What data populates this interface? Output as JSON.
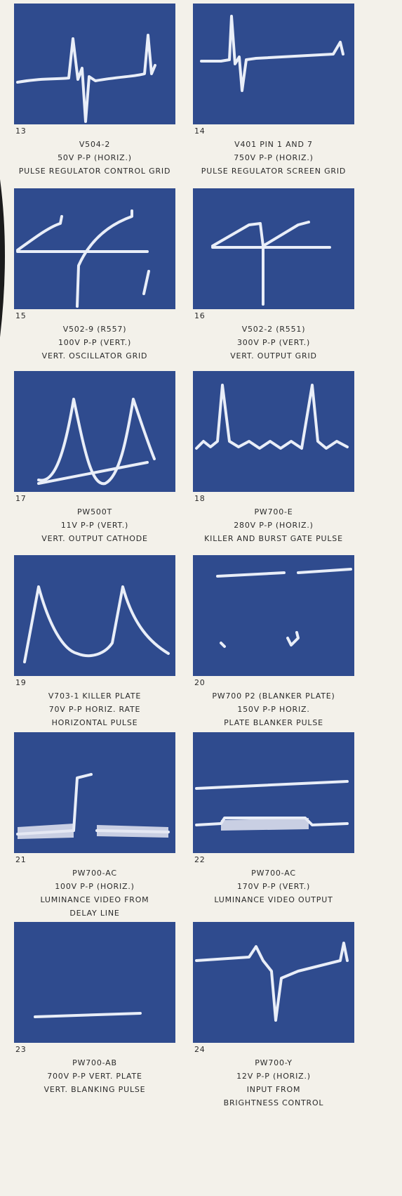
{
  "panels": [
    {
      "number": "13",
      "lines": [
        "V504-2",
        "50V P-P (HORIZ.)",
        "PULSE REGULATOR CONTROL GRID"
      ]
    },
    {
      "number": "14",
      "lines": [
        "V401 PIN 1 AND 7",
        "750V P-P (HORIZ.)",
        "PULSE REGULATOR SCREEN GRID"
      ]
    },
    {
      "number": "15",
      "lines": [
        "V502-9 (R557)",
        "100V P-P (VERT.)",
        "VERT. OSCILLATOR GRID"
      ]
    },
    {
      "number": "16",
      "lines": [
        "V502-2 (R551)",
        "300V P-P (VERT.)",
        "VERT. OUTPUT GRID"
      ]
    },
    {
      "number": "17",
      "lines": [
        "PW500T",
        "11V P-P (VERT.)",
        "VERT. OUTPUT CATHODE"
      ]
    },
    {
      "number": "18",
      "lines": [
        "PW700-E",
        "280V P-P (HORIZ.)",
        "KILLER AND BURST GATE PULSE"
      ]
    },
    {
      "number": "19",
      "lines": [
        "V703-1 KILLER PLATE",
        "70V P-P HORIZ. RATE",
        "HORIZONTAL PULSE"
      ]
    },
    {
      "number": "20",
      "lines": [
        "PW700 P2 (BLANKER PLATE)",
        "150V P-P HORIZ.",
        "PLATE BLANKER PULSE"
      ]
    },
    {
      "number": "21",
      "lines": [
        "PW700-AC",
        "100V P-P (HORIZ.)",
        "LUMINANCE VIDEO FROM",
        "DELAY LINE"
      ]
    },
    {
      "number": "22",
      "lines": [
        "PW700-AC",
        "170V P-P (VERT.)",
        "LUMINANCE VIDEO OUTPUT"
      ]
    },
    {
      "number": "23",
      "lines": [
        "PW700-AB",
        "700V P-P VERT. PLATE",
        "VERT. BLANKING PULSE"
      ]
    },
    {
      "number": "24",
      "lines": [
        "PW700-Y",
        "12V P-P (HORIZ.)",
        "INPUT FROM",
        "BRIGHTNESS CONTROL"
      ]
    }
  ]
}
